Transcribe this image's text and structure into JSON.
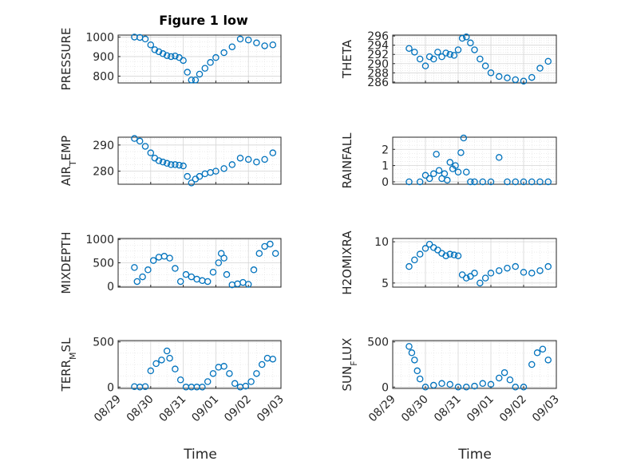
{
  "figure": {
    "title": "Figure 1 low",
    "time_label": "Time",
    "date_ticks": [
      "08/29",
      "08/30",
      "08/31",
      "09/01",
      "09/02",
      "09/03"
    ]
  },
  "chart_data": [
    {
      "type": "scatter",
      "panel": "top-left",
      "ylabel_main": "PRESSURE",
      "ylabel_sub": "",
      "ylabel_tail": "",
      "ylim": [
        765,
        1010
      ],
      "yticks": [
        800,
        900,
        1000
      ],
      "xlim": [
        "08/29",
        "09/03"
      ],
      "grid": true,
      "marker": "circle",
      "color": "#0072BD",
      "x": [
        "08/29 12:00",
        "08/29 16:00",
        "08/29 20:00",
        "08/30 00:00",
        "08/30 03:00",
        "08/30 06:00",
        "08/30 09:00",
        "08/30 12:00",
        "08/30 15:00",
        "08/30 18:00",
        "08/30 21:00",
        "08/31 00:00",
        "08/31 03:00",
        "08/31 06:00",
        "08/31 09:00",
        "08/31 12:00",
        "08/31 16:00",
        "08/31 20:00",
        "09/01 00:00",
        "09/01 06:00",
        "09/01 12:00",
        "09/01 18:00",
        "09/02 00:00",
        "09/02 06:00",
        "09/02 12:00",
        "09/02 18:00"
      ],
      "y": [
        1000,
        998,
        990,
        960,
        935,
        925,
        915,
        905,
        900,
        903,
        895,
        880,
        820,
        780,
        780,
        810,
        840,
        870,
        895,
        920,
        950,
        990,
        985,
        970,
        955,
        960
      ]
    },
    {
      "type": "scatter",
      "panel": "top-right",
      "ylabel_main": "THETA",
      "ylabel_sub": "",
      "ylabel_tail": "",
      "ylim": [
        285.8,
        296.2
      ],
      "yticks": [
        286,
        288,
        290,
        292,
        294,
        296
      ],
      "xlim": [
        "08/29",
        "09/03"
      ],
      "grid": true,
      "marker": "circle",
      "color": "#0072BD",
      "x": [
        "08/29 12:00",
        "08/29 16:00",
        "08/29 20:00",
        "08/30 00:00",
        "08/30 03:00",
        "08/30 06:00",
        "08/30 09:00",
        "08/30 12:00",
        "08/30 15:00",
        "08/30 18:00",
        "08/30 21:00",
        "08/31 00:00",
        "08/31 03:00",
        "08/31 06:00",
        "08/31 09:00",
        "08/31 12:00",
        "08/31 16:00",
        "08/31 20:00",
        "09/01 00:00",
        "09/01 06:00",
        "09/01 12:00",
        "09/01 18:00",
        "09/02 00:00",
        "09/02 06:00",
        "09/02 12:00",
        "09/02 18:00"
      ],
      "y": [
        293.3,
        292.5,
        291.0,
        289.5,
        291.5,
        291.0,
        292.5,
        291.5,
        292.3,
        292.0,
        291.8,
        293.0,
        295.5,
        295.8,
        294.5,
        293.0,
        291.0,
        289.5,
        288.0,
        287.2,
        286.9,
        286.5,
        286.2,
        287.0,
        289.0,
        290.5
      ]
    },
    {
      "type": "scatter",
      "panel": "row2-left",
      "ylabel_main": "AIR",
      "ylabel_sub": "T",
      "ylabel_tail": "EMP",
      "ylim": [
        275,
        293
      ],
      "yticks": [
        280,
        290
      ],
      "xlim": [
        "08/29",
        "09/03"
      ],
      "grid": true,
      "marker": "circle",
      "color": "#0072BD",
      "x": [
        "08/29 12:00",
        "08/29 16:00",
        "08/29 20:00",
        "08/30 00:00",
        "08/30 03:00",
        "08/30 06:00",
        "08/30 09:00",
        "08/30 12:00",
        "08/30 15:00",
        "08/30 18:00",
        "08/30 21:00",
        "08/31 00:00",
        "08/31 03:00",
        "08/31 06:00",
        "08/31 09:00",
        "08/31 12:00",
        "08/31 16:00",
        "08/31 20:00",
        "09/01 00:00",
        "09/01 06:00",
        "09/01 12:00",
        "09/01 18:00",
        "09/02 00:00",
        "09/02 06:00",
        "09/02 12:00",
        "09/02 18:00"
      ],
      "y": [
        292.5,
        291.5,
        289.5,
        287.0,
        285.0,
        284.0,
        283.5,
        283.0,
        282.5,
        282.5,
        282.3,
        282.0,
        278.0,
        275.5,
        277.0,
        278.0,
        279.0,
        279.5,
        280.0,
        281.0,
        282.5,
        285.0,
        284.5,
        283.5,
        284.5,
        287.0
      ]
    },
    {
      "type": "scatter",
      "panel": "row2-right",
      "ylabel_main": "RAINFALL",
      "ylabel_sub": "",
      "ylabel_tail": "",
      "ylim": [
        -0.15,
        2.75
      ],
      "yticks": [
        0,
        1,
        2
      ],
      "xlim": [
        "08/29",
        "09/03"
      ],
      "grid": true,
      "marker": "circle",
      "color": "#0072BD",
      "x": [
        "08/29 12:00",
        "08/29 20:00",
        "08/30 00:00",
        "08/30 03:00",
        "08/30 06:00",
        "08/30 08:00",
        "08/30 10:00",
        "08/30 12:00",
        "08/30 14:00",
        "08/30 16:00",
        "08/30 18:00",
        "08/30 20:00",
        "08/30 22:00",
        "08/31 00:00",
        "08/31 02:00",
        "08/31 04:00",
        "08/31 06:00",
        "08/31 09:00",
        "08/31 12:00",
        "08/31 18:00",
        "09/01 00:00",
        "09/01 06:00",
        "09/01 12:00",
        "09/01 18:00",
        "09/02 00:00",
        "09/02 06:00",
        "09/02 12:00",
        "09/02 18:00"
      ],
      "y": [
        0,
        0,
        0.4,
        0.2,
        0.5,
        1.7,
        0.7,
        0.2,
        0.5,
        0.1,
        1.2,
        0.8,
        1.0,
        0.6,
        1.8,
        2.7,
        0.6,
        0,
        0,
        0,
        0,
        1.5,
        0,
        0,
        0,
        0,
        0,
        0
      ]
    },
    {
      "type": "scatter",
      "panel": "row3-left",
      "ylabel_main": "MIXDEPTH",
      "ylabel_sub": "",
      "ylabel_tail": "",
      "ylim": [
        -20,
        1020
      ],
      "yticks": [
        0,
        500,
        1000
      ],
      "xlim": [
        "08/29",
        "09/03"
      ],
      "grid": true,
      "marker": "circle",
      "color": "#0072BD",
      "x": [
        "08/29 12:00",
        "08/29 14:00",
        "08/29 18:00",
        "08/29 22:00",
        "08/30 02:00",
        "08/30 06:00",
        "08/30 10:00",
        "08/30 14:00",
        "08/30 18:00",
        "08/30 22:00",
        "08/31 02:00",
        "08/31 06:00",
        "08/31 10:00",
        "08/31 14:00",
        "08/31 18:00",
        "08/31 22:00",
        "09/01 02:00",
        "09/01 04:00",
        "09/01 06:00",
        "09/01 08:00",
        "09/01 12:00",
        "09/01 16:00",
        "09/01 20:00",
        "09/02 00:00",
        "09/02 04:00",
        "09/02 08:00",
        "09/02 12:00",
        "09/02 16:00",
        "09/02 20:00"
      ],
      "y": [
        400,
        100,
        200,
        350,
        550,
        620,
        640,
        600,
        380,
        100,
        250,
        200,
        150,
        120,
        100,
        300,
        500,
        700,
        600,
        250,
        30,
        50,
        80,
        40,
        350,
        700,
        850,
        900,
        700
      ]
    },
    {
      "type": "scatter",
      "panel": "row3-right",
      "ylabel_main": "H2OMIXRA",
      "ylabel_sub": "",
      "ylabel_tail": "",
      "ylim": [
        4.5,
        10.4
      ],
      "yticks": [
        5,
        10
      ],
      "xlim": [
        "08/29",
        "09/03"
      ],
      "grid": true,
      "marker": "circle",
      "color": "#0072BD",
      "x": [
        "08/29 12:00",
        "08/29 16:00",
        "08/29 20:00",
        "08/30 00:00",
        "08/30 03:00",
        "08/30 06:00",
        "08/30 09:00",
        "08/30 12:00",
        "08/30 15:00",
        "08/30 18:00",
        "08/30 21:00",
        "08/31 00:00",
        "08/31 03:00",
        "08/31 06:00",
        "08/31 09:00",
        "08/31 12:00",
        "08/31 16:00",
        "08/31 20:00",
        "09/01 00:00",
        "09/01 06:00",
        "09/01 12:00",
        "09/01 18:00",
        "09/02 00:00",
        "09/02 06:00",
        "09/02 12:00",
        "09/02 18:00"
      ],
      "y": [
        7.0,
        7.8,
        8.5,
        9.2,
        9.7,
        9.3,
        9.0,
        8.6,
        8.3,
        8.5,
        8.4,
        8.3,
        6.0,
        5.6,
        5.8,
        6.2,
        5.0,
        5.6,
        6.2,
        6.5,
        6.8,
        7.0,
        6.3,
        6.2,
        6.5,
        7.0
      ]
    },
    {
      "type": "scatter",
      "panel": "bottom-left",
      "ylabel_main": "TERR",
      "ylabel_sub": "M",
      "ylabel_tail": "SL",
      "ylim": [
        -15,
        515
      ],
      "yticks": [
        0,
        500
      ],
      "xlim": [
        "08/29",
        "09/03"
      ],
      "grid": true,
      "marker": "circle",
      "color": "#0072BD",
      "x": [
        "08/29 12:00",
        "08/29 16:00",
        "08/29 20:00",
        "08/30 00:00",
        "08/30 04:00",
        "08/30 08:00",
        "08/30 12:00",
        "08/30 14:00",
        "08/30 18:00",
        "08/30 22:00",
        "08/31 02:00",
        "08/31 06:00",
        "08/31 10:00",
        "08/31 14:00",
        "08/31 18:00",
        "08/31 22:00",
        "09/01 02:00",
        "09/01 06:00",
        "09/01 10:00",
        "09/01 14:00",
        "09/01 18:00",
        "09/01 22:00",
        "09/02 02:00",
        "09/02 06:00",
        "09/02 10:00",
        "09/02 14:00",
        "09/02 18:00"
      ],
      "y": [
        5,
        0,
        5,
        180,
        260,
        300,
        400,
        320,
        200,
        80,
        0,
        0,
        0,
        0,
        60,
        150,
        220,
        230,
        150,
        40,
        0,
        10,
        60,
        150,
        250,
        320,
        310
      ]
    },
    {
      "type": "scatter",
      "panel": "bottom-right",
      "ylabel_main": "SUN",
      "ylabel_sub": "F",
      "ylabel_tail": "LUX",
      "ylim": [
        -15,
        515
      ],
      "yticks": [
        0,
        500
      ],
      "xlim": [
        "08/29",
        "09/03"
      ],
      "grid": true,
      "marker": "circle",
      "color": "#0072BD",
      "x": [
        "08/29 12:00",
        "08/29 14:00",
        "08/29 16:00",
        "08/29 18:00",
        "08/29 20:00",
        "08/30 00:00",
        "08/30 06:00",
        "08/30 12:00",
        "08/30 18:00",
        "08/31 00:00",
        "08/31 06:00",
        "08/31 12:00",
        "08/31 18:00",
        "09/01 00:00",
        "09/01 06:00",
        "09/01 10:00",
        "09/01 14:00",
        "09/01 18:00",
        "09/02 00:00",
        "09/02 06:00",
        "09/02 10:00",
        "09/02 14:00",
        "09/02 18:00"
      ],
      "y": [
        450,
        380,
        300,
        180,
        90,
        0,
        20,
        40,
        30,
        0,
        0,
        10,
        40,
        30,
        100,
        160,
        80,
        0,
        0,
        250,
        380,
        420,
        300
      ]
    }
  ]
}
